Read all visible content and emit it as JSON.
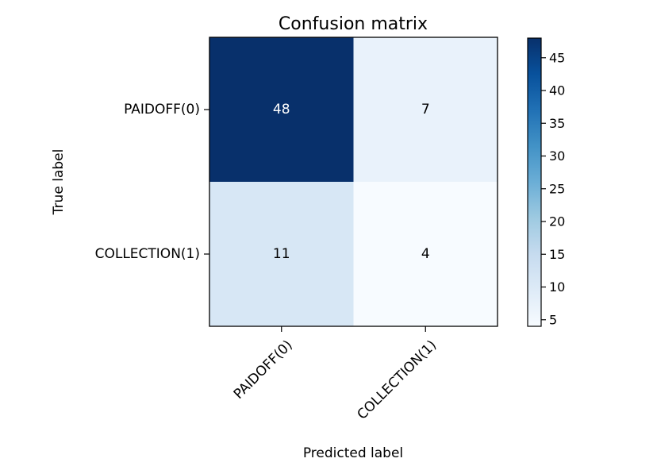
{
  "chart_data": {
    "type": "heatmap",
    "title": "Confusion matrix",
    "xlabel": "Predicted label",
    "ylabel": "True label",
    "x_categories": [
      "PAIDOFF(0)",
      "COLLECTION(1)"
    ],
    "y_categories": [
      "PAIDOFF(0)",
      "COLLECTION(1)"
    ],
    "values": [
      [
        48,
        7
      ],
      [
        11,
        4
      ]
    ],
    "colormap": "Blues",
    "colorbar": {
      "min": 4,
      "max": 48,
      "ticks": [
        5,
        10,
        15,
        20,
        25,
        30,
        35,
        40,
        45
      ]
    },
    "grid": false
  }
}
